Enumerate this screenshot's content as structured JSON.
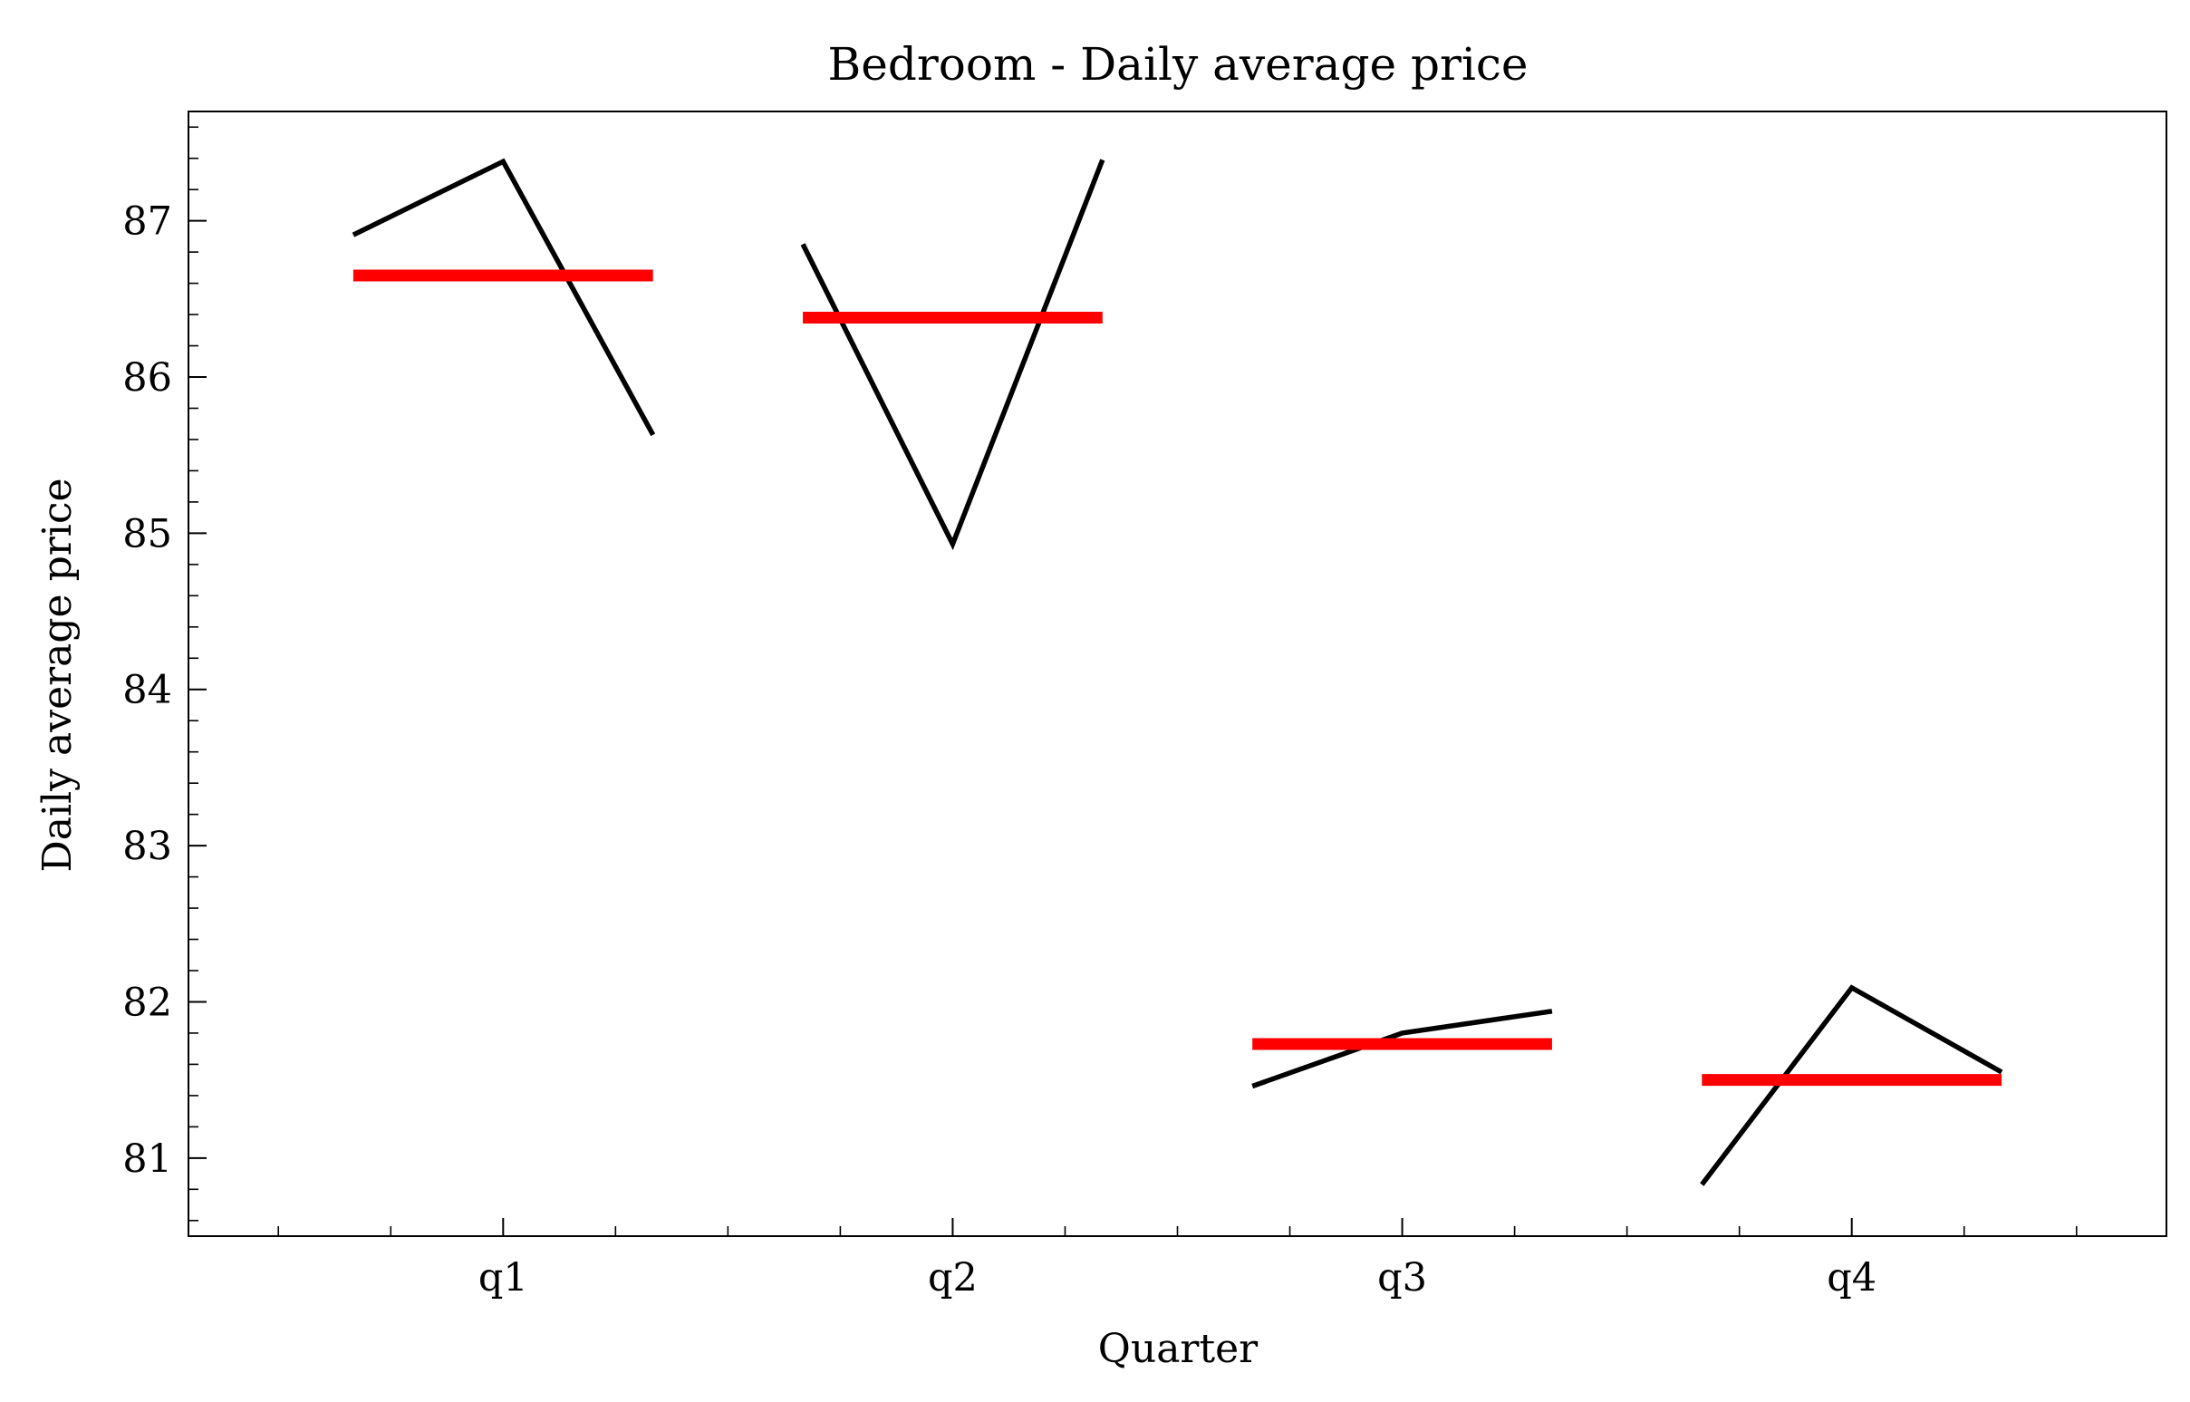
{
  "chart_data": {
    "type": "line",
    "title": "Bedroom - Daily average price",
    "xlabel": "Quarter",
    "ylabel": "Daily average price",
    "categories": [
      "q1",
      "q2",
      "q3",
      "q4"
    ],
    "ylim": [
      80.5,
      87.7
    ],
    "yticks": [
      81,
      82,
      83,
      84,
      85,
      86,
      87
    ],
    "grid": false,
    "series": [
      {
        "kind": "line",
        "color": "#000000",
        "groups": [
          {
            "category": "q1",
            "values": [
              86.91,
              87.38,
              85.63
            ]
          },
          {
            "category": "q2",
            "values": [
              86.85,
              84.93,
              87.39
            ]
          },
          {
            "category": "q3",
            "values": [
              81.46,
              81.8,
              81.94
            ]
          },
          {
            "category": "q4",
            "values": [
              80.83,
              82.09,
              81.55
            ]
          }
        ]
      },
      {
        "kind": "mean",
        "color": "#ff0000",
        "groups": [
          {
            "category": "q1",
            "value": 86.65
          },
          {
            "category": "q2",
            "value": 86.38
          },
          {
            "category": "q3",
            "value": 81.73
          },
          {
            "category": "q4",
            "value": 81.5
          }
        ]
      }
    ]
  }
}
